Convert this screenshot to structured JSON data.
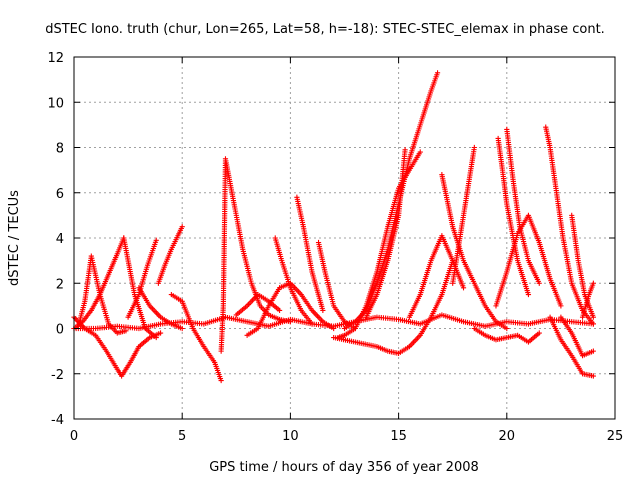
{
  "chart_data": {
    "type": "scatter",
    "title": "dSTEC Iono. truth (chur, Lon=265, Lat=58, h=-18): STEC-STEC_elemax in phase cont.",
    "xlabel": "GPS time / hours of day 356 of year 2008",
    "ylabel": "dSTEC  / TECUs",
    "xlim": [
      0,
      25
    ],
    "ylim": [
      -4,
      12
    ],
    "xticks": [
      0,
      5,
      10,
      15,
      20,
      25
    ],
    "yticks": [
      -4,
      -2,
      0,
      2,
      4,
      6,
      8,
      10,
      12
    ],
    "grid": true,
    "marker": "+",
    "color": "#ff0000",
    "series": [
      {
        "x": [
          0.0,
          0.5,
          1.0,
          1.5,
          2.0,
          2.2,
          2.6,
          3.0,
          3.5,
          4.0
        ],
        "y": [
          0.5,
          0.0,
          -0.3,
          -1.0,
          -1.8,
          -2.1,
          -1.5,
          -0.8,
          -0.4,
          -0.2
        ]
      },
      {
        "x": [
          0.2,
          0.5,
          0.8,
          1.2,
          1.6,
          2.0,
          2.4
        ],
        "y": [
          0.1,
          1.2,
          3.2,
          1.5,
          0.2,
          -0.2,
          -0.1
        ]
      },
      {
        "x": [
          0.0,
          0.4,
          0.8,
          1.2,
          1.6,
          2.0,
          2.3
        ],
        "y": [
          0.0,
          0.3,
          0.8,
          1.5,
          2.4,
          3.3,
          4.0
        ]
      },
      {
        "x": [
          2.3,
          2.8,
          3.3,
          3.8
        ],
        "y": [
          4.0,
          1.5,
          0.0,
          -0.4
        ]
      },
      {
        "x": [
          2.5,
          3.0,
          3.4,
          3.8
        ],
        "y": [
          0.5,
          1.5,
          2.8,
          3.9
        ]
      },
      {
        "x": [
          3.0,
          3.5,
          4.0,
          4.5,
          5.0
        ],
        "y": [
          1.8,
          1.0,
          0.5,
          0.2,
          0.0
        ]
      },
      {
        "x": [
          3.9,
          4.2,
          4.5,
          4.8,
          5.0
        ],
        "y": [
          2.0,
          2.8,
          3.5,
          4.1,
          4.5
        ]
      },
      {
        "x": [
          4.5,
          5.0,
          5.5,
          6.0,
          6.5,
          6.8
        ],
        "y": [
          1.5,
          1.2,
          0.0,
          -0.8,
          -1.5,
          -2.3
        ]
      },
      {
        "x": [
          6.8,
          6.9,
          7.0,
          7.2,
          7.5,
          7.8,
          8.2,
          8.6,
          9.0,
          9.5,
          10.0
        ],
        "y": [
          -1.0,
          1.0,
          7.5,
          6.5,
          5.0,
          3.5,
          2.0,
          1.0,
          0.6,
          0.4,
          0.3
        ]
      },
      {
        "x": [
          7.5,
          8.0,
          8.5,
          9.0,
          9.5
        ],
        "y": [
          0.6,
          1.0,
          1.5,
          1.2,
          0.8
        ]
      },
      {
        "x": [
          8.0,
          8.5,
          9.0,
          9.5,
          10.0,
          10.5,
          11.0,
          11.5,
          12.0
        ],
        "y": [
          -0.3,
          0.0,
          1.0,
          1.8,
          2.0,
          1.5,
          0.8,
          0.3,
          0.0
        ]
      },
      {
        "x": [
          9.3,
          9.6,
          10.0,
          10.5,
          11.0
        ],
        "y": [
          4.0,
          3.0,
          1.8,
          0.8,
          0.2
        ]
      },
      {
        "x": [
          10.3,
          10.6,
          11.0,
          11.5
        ],
        "y": [
          5.8,
          4.5,
          2.5,
          0.8
        ]
      },
      {
        "x": [
          11.3,
          11.6,
          12.0,
          12.5,
          13.0
        ],
        "y": [
          3.8,
          2.5,
          1.0,
          0.3,
          0.0
        ]
      },
      {
        "x": [
          12.2,
          12.5,
          13.0,
          13.5,
          14.0,
          14.5,
          15.0,
          15.5,
          16.0
        ],
        "y": [
          -0.4,
          -0.3,
          0.0,
          1.0,
          2.5,
          4.5,
          6.2,
          7.0,
          7.8
        ]
      },
      {
        "x": [
          13.5,
          14.0,
          14.5,
          15.0,
          15.3
        ],
        "y": [
          0.5,
          1.5,
          3.0,
          5.0,
          7.9
        ]
      },
      {
        "x": [
          12.5,
          13.0,
          13.5,
          14.0,
          14.5,
          15.0,
          15.5,
          16.0,
          16.5,
          16.8
        ],
        "y": [
          0.0,
          0.3,
          0.8,
          2.0,
          3.5,
          5.5,
          7.5,
          9.0,
          10.5,
          11.3
        ]
      },
      {
        "x": [
          12.0,
          13.0,
          14.0,
          14.5,
          15.0,
          15.5,
          16.0,
          16.5,
          17.0,
          17.5
        ],
        "y": [
          -0.4,
          -0.6,
          -0.8,
          -1.0,
          -1.1,
          -0.8,
          -0.3,
          0.5,
          1.5,
          3.0
        ]
      },
      {
        "x": [
          15.5,
          16.0,
          16.5,
          17.0,
          17.5,
          18.0
        ],
        "y": [
          0.5,
          1.5,
          3.0,
          4.1,
          3.0,
          1.8
        ]
      },
      {
        "x": [
          17.0,
          17.5,
          18.0,
          18.5,
          19.0,
          19.5,
          20.0
        ],
        "y": [
          6.8,
          4.5,
          3.0,
          2.0,
          1.0,
          0.3,
          0.0
        ]
      },
      {
        "x": [
          17.5,
          18.0,
          18.5
        ],
        "y": [
          2.0,
          5.0,
          8.0
        ]
      },
      {
        "x": [
          18.5,
          19.0,
          19.5,
          20.0,
          20.5,
          21.0,
          21.5
        ],
        "y": [
          0.0,
          -0.3,
          -0.5,
          -0.4,
          -0.3,
          -0.6,
          -0.2
        ]
      },
      {
        "x": [
          19.6,
          19.8,
          20.0,
          20.5,
          21.0
        ],
        "y": [
          8.4,
          7.0,
          5.5,
          3.0,
          1.5
        ]
      },
      {
        "x": [
          20.0,
          20.3,
          20.6,
          21.0,
          21.5
        ],
        "y": [
          8.8,
          6.5,
          4.5,
          3.0,
          2.0
        ]
      },
      {
        "x": [
          19.5,
          20.0,
          20.5,
          21.0,
          21.5,
          22.0,
          22.5
        ],
        "y": [
          1.0,
          2.5,
          4.2,
          5.0,
          3.8,
          2.2,
          1.0
        ]
      },
      {
        "x": [
          21.8,
          22.0,
          22.3,
          22.6,
          23.0,
          23.5,
          24.0
        ],
        "y": [
          8.9,
          8.0,
          6.0,
          4.0,
          2.0,
          0.8,
          0.2
        ]
      },
      {
        "x": [
          22.0,
          22.5,
          23.0,
          23.5,
          24.0
        ],
        "y": [
          0.5,
          -0.5,
          -1.2,
          -2.0,
          -2.1
        ]
      },
      {
        "x": [
          23.0,
          23.3,
          23.6,
          24.0
        ],
        "y": [
          5.0,
          3.0,
          1.5,
          0.5
        ]
      },
      {
        "x": [
          22.5,
          23.0,
          23.5,
          24.0
        ],
        "y": [
          0.5,
          -0.2,
          -1.2,
          -1.0
        ]
      },
      {
        "x": [
          23.5,
          23.8,
          24.0
        ],
        "y": [
          0.5,
          1.5,
          2.0
        ]
      },
      {
        "x": [
          0.0,
          1.0,
          2.0,
          3.0,
          4.0,
          5.0,
          6.0,
          7.0,
          8.0,
          9.0,
          10.0,
          11.0,
          12.0,
          13.0,
          14.0,
          15.0,
          16.0,
          17.0,
          18.0,
          19.0,
          20.0,
          21.0,
          22.0,
          23.0,
          24.0
        ],
        "y": [
          0.0,
          0.0,
          0.1,
          0.0,
          0.2,
          0.3,
          0.2,
          0.5,
          0.3,
          0.1,
          0.4,
          0.2,
          0.1,
          0.3,
          0.5,
          0.4,
          0.2,
          0.6,
          0.3,
          0.1,
          0.3,
          0.2,
          0.4,
          0.3,
          0.2
        ]
      }
    ]
  }
}
